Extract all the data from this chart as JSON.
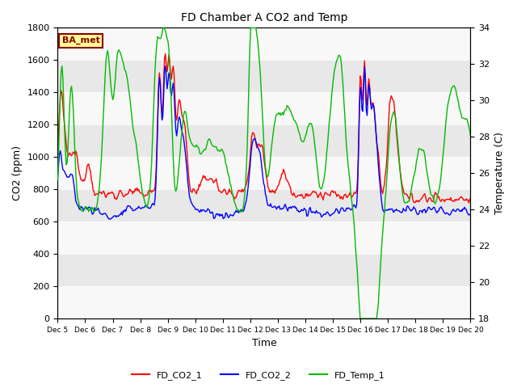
{
  "title": "FD Chamber A CO2 and Temp",
  "xlabel": "Time",
  "ylabel_left": "CO2 (ppm)",
  "ylabel_right": "Temperature (C)",
  "co2_ylim": [
    0,
    1800
  ],
  "temp_ylim": [
    18,
    34
  ],
  "co2_yticks": [
    0,
    200,
    400,
    600,
    800,
    1000,
    1200,
    1400,
    1600,
    1800
  ],
  "temp_yticks": [
    18,
    20,
    22,
    24,
    26,
    28,
    30,
    32,
    34
  ],
  "xtick_labels": [
    "Dec 5",
    "Dec 6",
    "Dec 7",
    "Dec 8",
    "Dec 9",
    "Dec 10",
    "Dec 11",
    "Dec 12",
    "Dec 13",
    "Dec 14",
    "Dec 15",
    "Dec 16",
    "Dec 17",
    "Dec 18",
    "Dec 19",
    "Dec 20"
  ],
  "color_co2_1": "#ff0000",
  "color_co2_2": "#0000ff",
  "color_temp": "#00bb00",
  "label_co2_1": "FD_CO2_1",
  "label_co2_2": "FD_CO2_2",
  "label_temp": "FD_Temp_1",
  "watermark_text": "BA_met",
  "watermark_fg": "#8b0000",
  "watermark_bg": "#ffff99",
  "bg_band_dark": "#e8e8e8",
  "bg_band_light": "#f8f8f8",
  "linewidth": 1.0,
  "n_points": 480,
  "figsize": [
    6.4,
    4.8
  ],
  "dpi": 100
}
